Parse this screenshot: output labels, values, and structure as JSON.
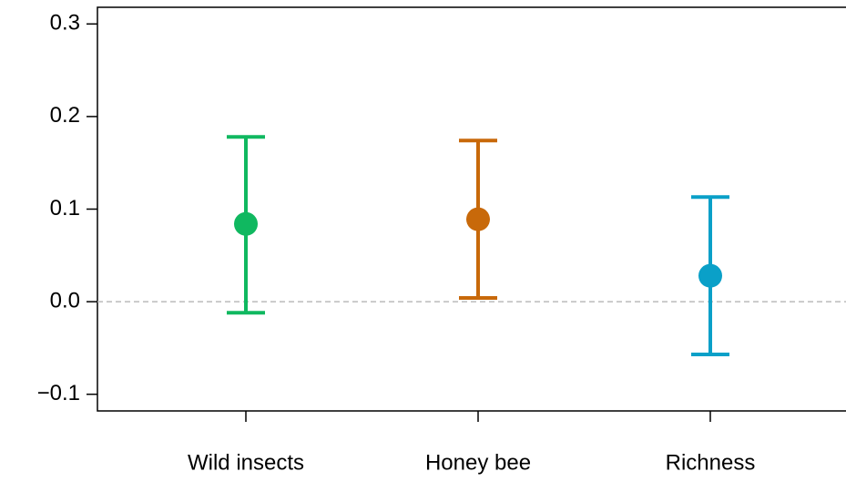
{
  "chart_data": {
    "type": "errorbar",
    "categories": [
      "Wild insects",
      "Honey bee",
      "Richness"
    ],
    "values": [
      0.084,
      0.089,
      0.028
    ],
    "lower": [
      -0.012,
      0.004,
      -0.057
    ],
    "upper": [
      0.178,
      0.174,
      0.113
    ],
    "colors": [
      "#10b860",
      "#c8690a",
      "#0aa0c8"
    ],
    "ylim": [
      -0.118,
      0.318
    ],
    "yticks": [
      {
        "value": -0.1,
        "label": "−0.1"
      },
      {
        "value": 0,
        "label": "0.0"
      },
      0.1,
      0.2,
      0.3
    ],
    "hline": 0
  }
}
